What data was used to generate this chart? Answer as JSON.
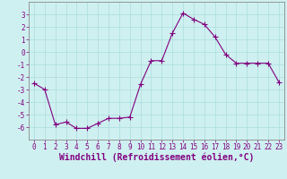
{
  "x": [
    0,
    1,
    2,
    3,
    4,
    5,
    6,
    7,
    8,
    9,
    10,
    11,
    12,
    13,
    14,
    15,
    16,
    17,
    18,
    19,
    20,
    21,
    22,
    23
  ],
  "y": [
    -2.5,
    -3.0,
    -5.8,
    -5.6,
    -6.1,
    -6.1,
    -5.7,
    -5.3,
    -5.3,
    -5.2,
    -2.6,
    -0.7,
    -0.7,
    1.5,
    3.1,
    2.6,
    2.2,
    1.2,
    -0.2,
    -0.9,
    -0.9,
    -0.9,
    -0.9,
    -2.4
  ],
  "line_color": "#800080",
  "marker": "D",
  "marker_size": 2.0,
  "bg_color": "#cff0f0",
  "grid_color": "#aadddd",
  "xlabel": "Windchill (Refroidissement éolien,°C)",
  "xlim": [
    -0.5,
    23.5
  ],
  "ylim": [
    -7,
    4
  ],
  "yticks": [
    -6,
    -5,
    -4,
    -3,
    -2,
    -1,
    0,
    1,
    2,
    3
  ],
  "xticks": [
    0,
    1,
    2,
    3,
    4,
    5,
    6,
    7,
    8,
    9,
    10,
    11,
    12,
    13,
    14,
    15,
    16,
    17,
    18,
    19,
    20,
    21,
    22,
    23
  ],
  "tick_label_fontsize": 5.5,
  "xlabel_fontsize": 7.0,
  "spine_color": "#888888",
  "linewidth": 0.8
}
